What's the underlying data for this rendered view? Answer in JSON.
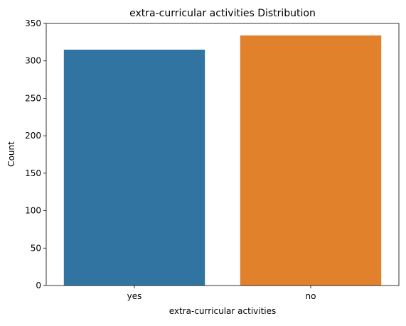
{
  "chart_data": {
    "type": "bar",
    "title": "extra-curricular activities Distribution",
    "xlabel": "extra-curricular activities",
    "ylabel": "Count",
    "categories": [
      "yes",
      "no"
    ],
    "values": [
      315,
      334
    ],
    "ylim": [
      0,
      350
    ],
    "yticks": [
      0,
      50,
      100,
      150,
      200,
      250,
      300,
      350
    ],
    "colors": [
      "#3274a1",
      "#e1812c"
    ],
    "grid": false,
    "legend": "none"
  }
}
